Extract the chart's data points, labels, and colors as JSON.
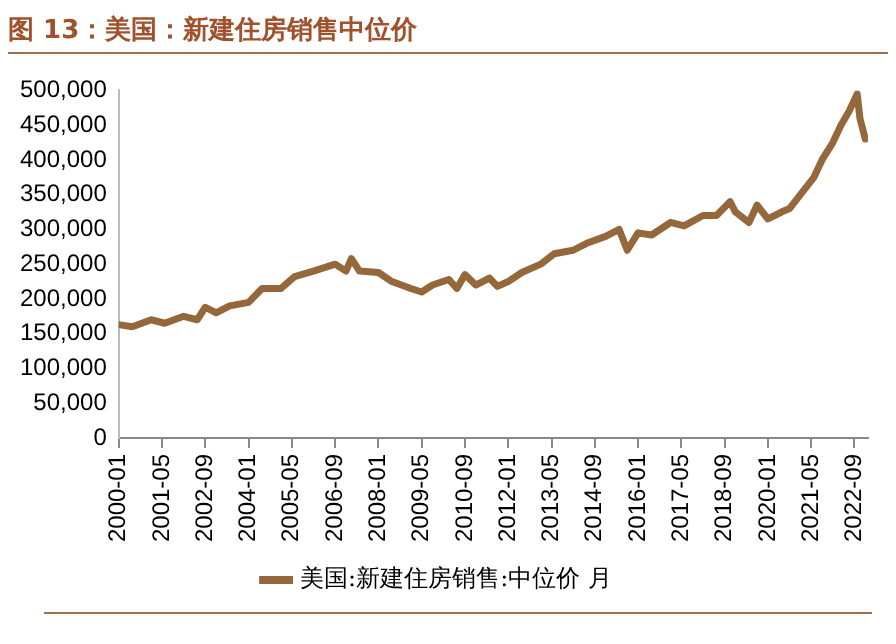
{
  "chart_data": {
    "type": "line",
    "title": "图 13：美国：新建住房销售中位价",
    "x": [
      "2000-01",
      "2000-06",
      "2001-01",
      "2001-06",
      "2002-01",
      "2002-06",
      "2002-09",
      "2003-01",
      "2003-06",
      "2004-01",
      "2004-06",
      "2005-01",
      "2005-06",
      "2006-01",
      "2006-09",
      "2007-01",
      "2007-03",
      "2007-06",
      "2008-01",
      "2008-06",
      "2009-01",
      "2009-05",
      "2009-09",
      "2010-03",
      "2010-06",
      "2010-09",
      "2011-01",
      "2011-06",
      "2011-09",
      "2012-01",
      "2012-06",
      "2013-01",
      "2013-06",
      "2014-01",
      "2014-06",
      "2015-01",
      "2015-06",
      "2015-09",
      "2016-01",
      "2016-06",
      "2017-01",
      "2017-06",
      "2018-01",
      "2018-06",
      "2018-11",
      "2019-01",
      "2019-06",
      "2019-09",
      "2020-01",
      "2020-06",
      "2020-09",
      "2021-01",
      "2021-06",
      "2021-09",
      "2022-01",
      "2022-04",
      "2022-07",
      "2022-10",
      "2022-11",
      "2023-01"
    ],
    "series": [
      {
        "name": "美国:新建住房销售:中位价 月",
        "color": "#94683a",
        "values": [
          163000,
          160000,
          170000,
          165000,
          175000,
          170000,
          188000,
          180000,
          190000,
          195000,
          215000,
          215000,
          232000,
          240000,
          250000,
          240000,
          258000,
          240000,
          238000,
          225000,
          215000,
          210000,
          220000,
          228000,
          215000,
          235000,
          220000,
          230000,
          218000,
          225000,
          238000,
          250000,
          265000,
          270000,
          280000,
          290000,
          300000,
          270000,
          295000,
          292000,
          310000,
          305000,
          320000,
          320000,
          340000,
          325000,
          310000,
          335000,
          315000,
          325000,
          330000,
          350000,
          375000,
          400000,
          425000,
          450000,
          470000,
          495000,
          460000,
          430000
        ]
      }
    ],
    "xlim": [
      "2000-01",
      "2023-02"
    ],
    "xticks": [
      "2000-01",
      "2001-05",
      "2002-09",
      "2004-01",
      "2005-05",
      "2006-09",
      "2008-01",
      "2009-05",
      "2010-09",
      "2012-01",
      "2013-05",
      "2014-09",
      "2016-01",
      "2017-05",
      "2018-09",
      "2020-01",
      "2021-05",
      "2022-09"
    ],
    "ylim": [
      0,
      500000
    ],
    "yticks": [
      {
        "value": 0,
        "label": "0"
      },
      {
        "value": 50000,
        "label": "50,000"
      },
      {
        "value": 100000,
        "label": "100,000"
      },
      {
        "value": 150000,
        "label": "150,000"
      },
      {
        "value": 200000,
        "label": "200,000"
      },
      {
        "value": 250000,
        "label": "250,000"
      },
      {
        "value": 300000,
        "label": "300,000"
      },
      {
        "value": 350000,
        "label": "350,000"
      },
      {
        "value": 400000,
        "label": "400,000"
      },
      {
        "value": 450000,
        "label": "450,000"
      },
      {
        "value": 500000,
        "label": "500,000"
      }
    ],
    "grid": false,
    "legend": "bottom",
    "marker": "none",
    "line_style": "solid"
  }
}
